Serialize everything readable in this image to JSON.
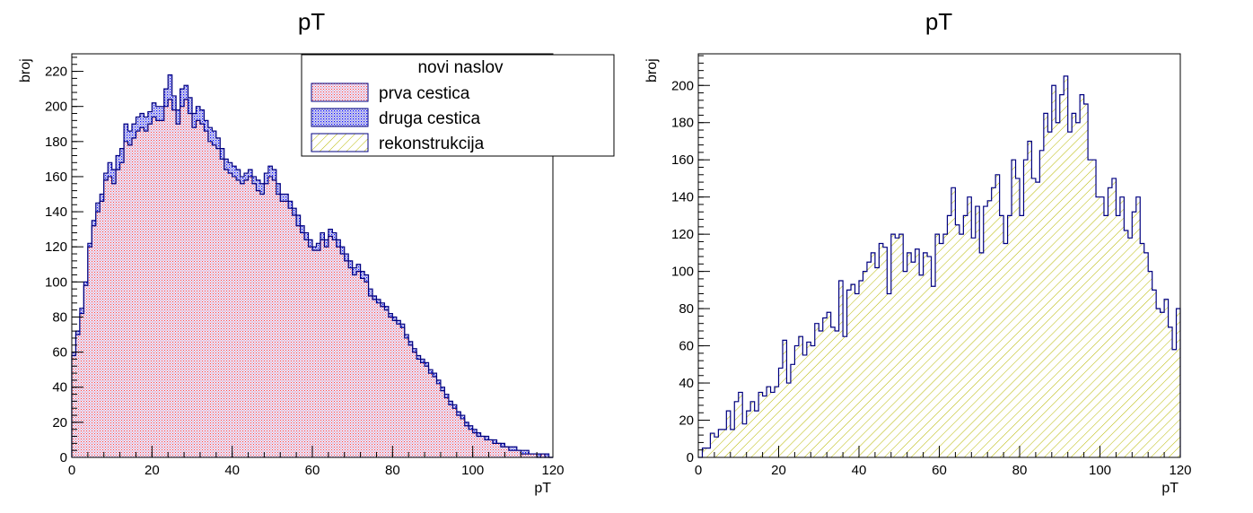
{
  "colors": {
    "frame": "#000000",
    "series_line": "#000080",
    "prva_fill": "#ff0000",
    "druga_fill": "#0000ff",
    "rekon_fill": "#c8c800"
  },
  "chart_data": [
    {
      "type": "bar",
      "histogram": true,
      "title": "pT",
      "xlabel": "pT",
      "ylabel": "broj",
      "xlim": [
        0,
        120
      ],
      "ylim": [
        0,
        230
      ],
      "xticks": [
        0,
        20,
        40,
        60,
        80,
        100,
        120
      ],
      "yticks": [
        0,
        20,
        40,
        60,
        80,
        100,
        120,
        140,
        160,
        180,
        200,
        220
      ],
      "bin_width": 1,
      "legend": {
        "title": "novi naslov",
        "placement": "top-right",
        "entries": [
          "prva cestica",
          "druga cestica",
          "rekonstrukcija"
        ]
      },
      "series": [
        {
          "name": "druga cestica",
          "fill": "blue-dots",
          "values": [
            60,
            72,
            85,
            100,
            122,
            135,
            145,
            150,
            162,
            168,
            164,
            172,
            176,
            190,
            186,
            190,
            194,
            196,
            194,
            197,
            202,
            200,
            200,
            210,
            218,
            206,
            198,
            210,
            212,
            205,
            196,
            200,
            198,
            192,
            188,
            186,
            182,
            176,
            170,
            168,
            166,
            164,
            160,
            162,
            164,
            160,
            158,
            156,
            162,
            166,
            164,
            156,
            150,
            150,
            146,
            142,
            138,
            132,
            128,
            124,
            120,
            122,
            128,
            124,
            130,
            128,
            124,
            120,
            116,
            112,
            108,
            110,
            106,
            104,
            96,
            92,
            90,
            88,
            86,
            82,
            80,
            78,
            76,
            70,
            66,
            62,
            58,
            56,
            54,
            50,
            48,
            44,
            40,
            36,
            32,
            30,
            26,
            24,
            20,
            18,
            16,
            14,
            12,
            12,
            10,
            10,
            8,
            8,
            6,
            6,
            6,
            4,
            4,
            4,
            2,
            2,
            2,
            0,
            2,
            0
          ]
        },
        {
          "name": "prva cestica",
          "fill": "red-dots",
          "values": [
            58,
            70,
            82,
            98,
            120,
            132,
            140,
            146,
            158,
            160,
            156,
            164,
            168,
            180,
            178,
            182,
            186,
            188,
            186,
            190,
            194,
            192,
            192,
            200,
            204,
            198,
            190,
            200,
            204,
            196,
            188,
            192,
            190,
            186,
            180,
            178,
            176,
            170,
            164,
            162,
            160,
            158,
            156,
            158,
            160,
            156,
            152,
            150,
            156,
            160,
            158,
            150,
            146,
            146,
            142,
            138,
            132,
            128,
            124,
            120,
            118,
            118,
            124,
            120,
            126,
            124,
            120,
            116,
            112,
            108,
            104,
            106,
            102,
            100,
            92,
            90,
            88,
            86,
            84,
            80,
            78,
            76,
            74,
            68,
            64,
            60,
            56,
            54,
            52,
            48,
            46,
            42,
            38,
            34,
            30,
            28,
            24,
            22,
            18,
            16,
            14,
            12,
            12,
            10,
            10,
            8,
            8,
            6,
            6,
            4,
            4,
            4,
            2,
            2,
            2,
            2,
            0,
            2,
            0,
            0
          ]
        }
      ]
    },
    {
      "type": "bar",
      "histogram": true,
      "title": "pT",
      "xlabel": "pT",
      "ylabel": "broj",
      "xlim": [
        0,
        120
      ],
      "ylim": [
        0,
        217
      ],
      "xticks": [
        0,
        20,
        40,
        60,
        80,
        100,
        120
      ],
      "yticks": [
        0,
        20,
        40,
        60,
        80,
        100,
        120,
        140,
        160,
        180,
        200
      ],
      "bin_width": 1,
      "series": [
        {
          "name": "rekonstrukcija",
          "fill": "yellow-hatch",
          "values": [
            0,
            5,
            5,
            13,
            11,
            15,
            15,
            25,
            15,
            30,
            35,
            18,
            25,
            30,
            25,
            35,
            33,
            38,
            35,
            38,
            48,
            63,
            40,
            50,
            60,
            65,
            55,
            62,
            60,
            72,
            68,
            75,
            78,
            70,
            68,
            95,
            65,
            90,
            93,
            88,
            95,
            100,
            105,
            110,
            102,
            115,
            113,
            88,
            120,
            118,
            120,
            100,
            110,
            105,
            112,
            98,
            110,
            108,
            92,
            120,
            115,
            120,
            130,
            145,
            125,
            120,
            130,
            140,
            118,
            135,
            110,
            135,
            138,
            145,
            152,
            130,
            115,
            130,
            160,
            150,
            130,
            160,
            170,
            150,
            148,
            165,
            185,
            175,
            200,
            180,
            195,
            205,
            175,
            185,
            180,
            195,
            190,
            160,
            160,
            140,
            140,
            130,
            145,
            150,
            130,
            140,
            122,
            118,
            132,
            140,
            115,
            110,
            100,
            90,
            80,
            78,
            85,
            70,
            58,
            80
          ]
        }
      ]
    }
  ]
}
